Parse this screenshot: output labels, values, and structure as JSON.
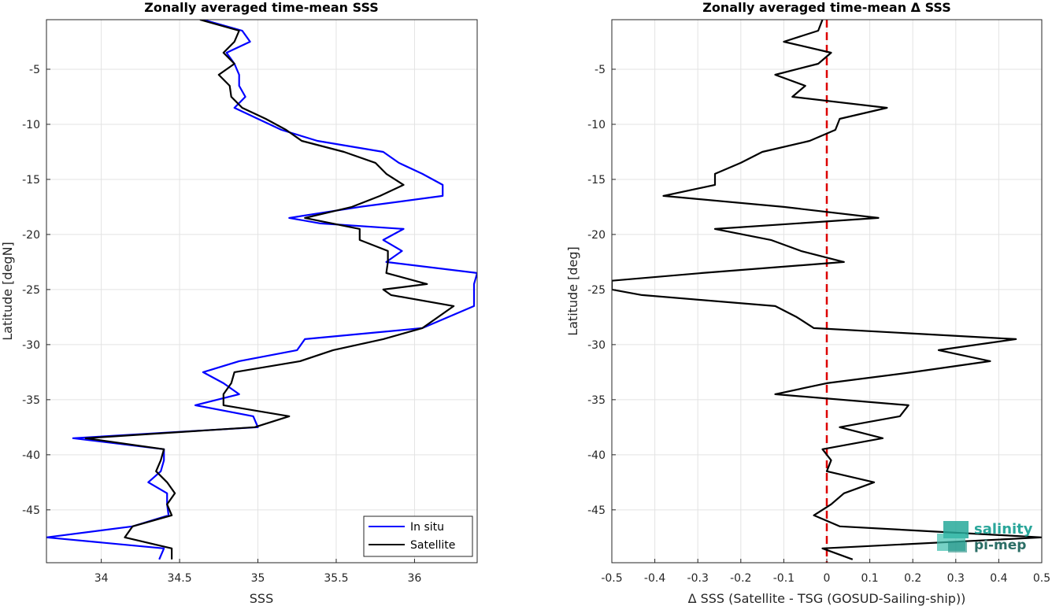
{
  "chart_data": [
    {
      "type": "line",
      "title": "Zonally averaged time-mean SSS",
      "xlabel": "SSS",
      "ylabel": "Latitude [degN]",
      "xlim": [
        33.65,
        36.4
      ],
      "ylim": [
        -49.8,
        -0.5
      ],
      "xticks": [
        "34",
        "34.5",
        "35",
        "35.5",
        "36"
      ],
      "xtick_values": [
        34,
        34.5,
        35,
        35.5,
        36
      ],
      "yticks": [
        "-5",
        "-10",
        "-15",
        "-20",
        "-25",
        "-30",
        "-35",
        "-40",
        "-45"
      ],
      "ytick_values": [
        -5,
        -10,
        -15,
        -20,
        -25,
        -30,
        -35,
        -40,
        -45
      ],
      "grid": true,
      "legend_position": "bottom-right",
      "series": [
        {
          "name": "In situ",
          "color": "#0000ff",
          "points": [
            [
              34.65,
              -0.5
            ],
            [
              34.9,
              -1.5
            ],
            [
              34.95,
              -2.5
            ],
            [
              34.8,
              -3.5
            ],
            [
              34.85,
              -4.5
            ],
            [
              34.88,
              -5.5
            ],
            [
              34.88,
              -6.5
            ],
            [
              34.92,
              -7.5
            ],
            [
              34.85,
              -8.5
            ],
            [
              35.0,
              -9.5
            ],
            [
              35.15,
              -10.5
            ],
            [
              35.38,
              -11.5
            ],
            [
              35.8,
              -12.5
            ],
            [
              35.9,
              -13.5
            ],
            [
              36.05,
              -14.5
            ],
            [
              36.18,
              -15.5
            ],
            [
              36.18,
              -16.5
            ],
            [
              35.65,
              -17.5
            ],
            [
              35.2,
              -18.5
            ],
            [
              35.4,
              -19.0
            ],
            [
              35.93,
              -19.5
            ],
            [
              35.8,
              -20.5
            ],
            [
              35.92,
              -21.5
            ],
            [
              35.82,
              -22.5
            ],
            [
              36.4,
              -23.5
            ],
            [
              36.38,
              -24.5
            ],
            [
              36.38,
              -25.5
            ],
            [
              36.38,
              -26.5
            ],
            [
              36.05,
              -28.5
            ],
            [
              35.3,
              -29.5
            ],
            [
              35.25,
              -30.5
            ],
            [
              34.88,
              -31.5
            ],
            [
              34.65,
              -32.5
            ],
            [
              34.78,
              -33.5
            ],
            [
              34.88,
              -34.5
            ],
            [
              34.6,
              -35.5
            ],
            [
              34.97,
              -36.5
            ],
            [
              35.0,
              -37.5
            ],
            [
              33.82,
              -38.5
            ],
            [
              34.4,
              -39.5
            ],
            [
              34.4,
              -40.5
            ],
            [
              34.38,
              -41.5
            ],
            [
              34.3,
              -42.5
            ],
            [
              34.42,
              -43.5
            ],
            [
              34.42,
              -44.5
            ],
            [
              34.43,
              -45.5
            ],
            [
              34.2,
              -46.5
            ],
            [
              33.65,
              -47.5
            ],
            [
              34.4,
              -48.5
            ],
            [
              34.37,
              -49.5
            ]
          ]
        },
        {
          "name": "Satellite",
          "color": "#000000",
          "points": [
            [
              34.63,
              -0.5
            ],
            [
              34.88,
              -1.5
            ],
            [
              34.85,
              -2.5
            ],
            [
              34.78,
              -3.5
            ],
            [
              34.85,
              -4.5
            ],
            [
              34.75,
              -5.5
            ],
            [
              34.82,
              -6.5
            ],
            [
              34.83,
              -7.5
            ],
            [
              34.9,
              -8.5
            ],
            [
              35.05,
              -9.5
            ],
            [
              35.18,
              -10.5
            ],
            [
              35.28,
              -11.5
            ],
            [
              35.55,
              -12.5
            ],
            [
              35.75,
              -13.5
            ],
            [
              35.82,
              -14.5
            ],
            [
              35.93,
              -15.5
            ],
            [
              35.78,
              -16.5
            ],
            [
              35.6,
              -17.5
            ],
            [
              35.3,
              -18.5
            ],
            [
              35.65,
              -19.5
            ],
            [
              35.65,
              -20.5
            ],
            [
              35.83,
              -21.5
            ],
            [
              35.83,
              -22.5
            ],
            [
              35.82,
              -23.5
            ],
            [
              36.08,
              -24.5
            ],
            [
              35.8,
              -25.0
            ],
            [
              35.85,
              -25.5
            ],
            [
              36.25,
              -26.5
            ],
            [
              36.05,
              -28.5
            ],
            [
              35.8,
              -29.5
            ],
            [
              35.48,
              -30.5
            ],
            [
              35.27,
              -31.5
            ],
            [
              34.85,
              -32.5
            ],
            [
              34.83,
              -33.5
            ],
            [
              34.78,
              -34.5
            ],
            [
              34.78,
              -35.5
            ],
            [
              35.2,
              -36.5
            ],
            [
              34.98,
              -37.5
            ],
            [
              33.9,
              -38.5
            ],
            [
              34.4,
              -39.5
            ],
            [
              34.38,
              -40.5
            ],
            [
              34.35,
              -41.5
            ],
            [
              34.42,
              -42.5
            ],
            [
              34.47,
              -43.5
            ],
            [
              34.42,
              -44.5
            ],
            [
              34.45,
              -45.5
            ],
            [
              34.2,
              -46.5
            ],
            [
              34.15,
              -47.5
            ],
            [
              34.45,
              -48.5
            ],
            [
              34.45,
              -49.5
            ]
          ]
        }
      ]
    },
    {
      "type": "line",
      "title": "Zonally averaged time-mean Δ SSS",
      "xlabel": "Δ SSS (Satellite - TSG (GOSUD-Sailing-ship))",
      "ylabel": "Latitude [deg]",
      "xlim": [
        -0.5,
        0.5
      ],
      "ylim": [
        -49.8,
        -0.5
      ],
      "xticks": [
        "-0.5",
        "-0.4",
        "-0.3",
        "-0.2",
        "-0.1",
        "0",
        "0.1",
        "0.2",
        "0.3",
        "0.4",
        "0.5"
      ],
      "xtick_values": [
        -0.5,
        -0.4,
        -0.3,
        -0.2,
        -0.1,
        0,
        0.1,
        0.2,
        0.3,
        0.4,
        0.5
      ],
      "yticks": [
        "-5",
        "-10",
        "-15",
        "-20",
        "-25",
        "-30",
        "-35",
        "-40",
        "-45"
      ],
      "ytick_values": [
        -5,
        -10,
        -15,
        -20,
        -25,
        -30,
        -35,
        -40,
        -45
      ],
      "grid": true,
      "reference_line": {
        "x": 0,
        "color": "#dd0000",
        "style": "dashed"
      },
      "series": [
        {
          "color": "#000000",
          "points": [
            [
              -0.01,
              -0.5
            ],
            [
              -0.02,
              -1.5
            ],
            [
              -0.1,
              -2.5
            ],
            [
              0.01,
              -3.5
            ],
            [
              -0.02,
              -4.5
            ],
            [
              -0.12,
              -5.5
            ],
            [
              -0.05,
              -6.5
            ],
            [
              -0.08,
              -7.5
            ],
            [
              0.14,
              -8.5
            ],
            [
              0.03,
              -9.5
            ],
            [
              0.02,
              -10.5
            ],
            [
              -0.04,
              -11.5
            ],
            [
              -0.15,
              -12.5
            ],
            [
              -0.2,
              -13.5
            ],
            [
              -0.26,
              -14.5
            ],
            [
              -0.26,
              -15.5
            ],
            [
              -0.38,
              -16.5
            ],
            [
              -0.1,
              -17.5
            ],
            [
              0.12,
              -18.5
            ],
            [
              -0.26,
              -19.5
            ],
            [
              -0.13,
              -20.5
            ],
            [
              -0.06,
              -21.5
            ],
            [
              0.04,
              -22.5
            ],
            [
              -0.29,
              -23.5
            ],
            [
              -0.5,
              -24.2
            ],
            [
              -0.5,
              -25.0
            ],
            [
              -0.43,
              -25.5
            ],
            [
              -0.12,
              -26.5
            ],
            [
              -0.07,
              -27.5
            ],
            [
              -0.03,
              -28.5
            ],
            [
              0.44,
              -29.5
            ],
            [
              0.26,
              -30.5
            ],
            [
              0.38,
              -31.5
            ],
            [
              0.2,
              -32.5
            ],
            [
              0.0,
              -33.5
            ],
            [
              -0.12,
              -34.5
            ],
            [
              0.19,
              -35.5
            ],
            [
              0.17,
              -36.5
            ],
            [
              0.03,
              -37.5
            ],
            [
              0.13,
              -38.5
            ],
            [
              -0.01,
              -39.5
            ],
            [
              0.01,
              -40.5
            ],
            [
              0.0,
              -41.5
            ],
            [
              0.11,
              -42.5
            ],
            [
              0.04,
              -43.5
            ],
            [
              0.01,
              -44.5
            ],
            [
              -0.03,
              -45.5
            ],
            [
              0.03,
              -46.5
            ],
            [
              0.5,
              -47.5
            ],
            [
              -0.01,
              -48.5
            ],
            [
              0.06,
              -49.5
            ]
          ]
        }
      ]
    }
  ],
  "logo": {
    "line1": "salinity",
    "line2": "pi-mep"
  }
}
